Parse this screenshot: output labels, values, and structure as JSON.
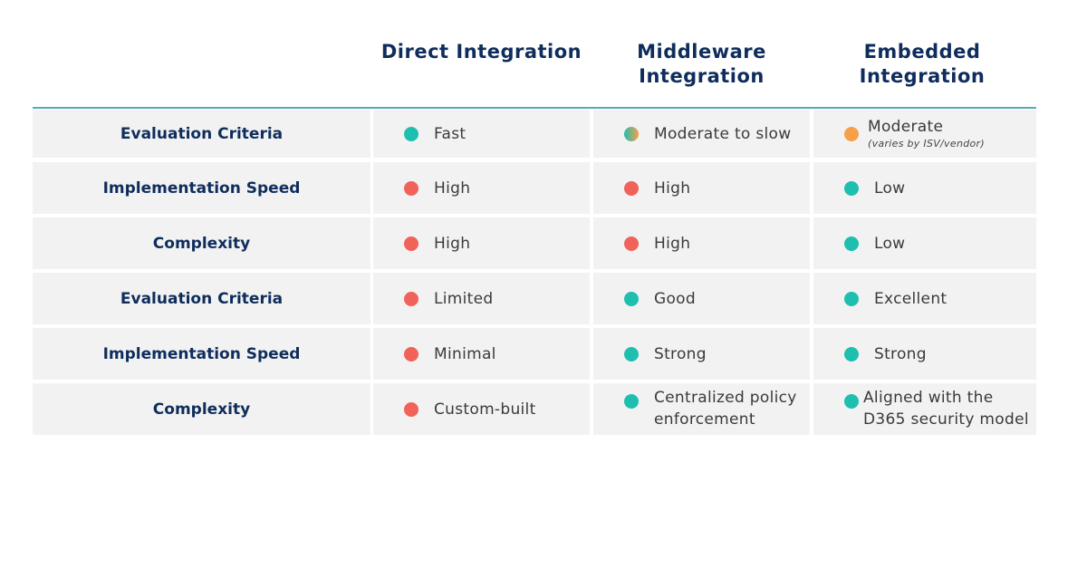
{
  "colors": {
    "good": "#1fbfb0",
    "bad": "#f0625a",
    "medium": "#f7a04a",
    "mixed": "linear-gradient(90deg,#1fbfb0,#f7a04a)",
    "header": "#0f2d5c"
  },
  "columns": [
    "Direct Integration",
    "Middleware Integration",
    "Embedded Integration"
  ],
  "rows": [
    {
      "label": "Evaluation Criteria",
      "cells": [
        {
          "status": "good",
          "text": "Fast"
        },
        {
          "status": "mixed",
          "text": "Moderate to slow"
        },
        {
          "status": "medium",
          "text": "Moderate",
          "note": "(varies by ISV/vendor)"
        }
      ]
    },
    {
      "label": "Implementation Speed",
      "cells": [
        {
          "status": "bad",
          "text": "High"
        },
        {
          "status": "bad",
          "text": "High"
        },
        {
          "status": "good",
          "text": "Low"
        }
      ]
    },
    {
      "label": "Complexity",
      "cells": [
        {
          "status": "bad",
          "text": "High"
        },
        {
          "status": "bad",
          "text": "High"
        },
        {
          "status": "good",
          "text": "Low"
        }
      ]
    },
    {
      "label": "Evaluation Criteria",
      "cells": [
        {
          "status": "bad",
          "text": "Limited"
        },
        {
          "status": "good",
          "text": "Good"
        },
        {
          "status": "good",
          "text": "Excellent"
        }
      ]
    },
    {
      "label": "Implementation Speed",
      "cells": [
        {
          "status": "bad",
          "text": "Minimal"
        },
        {
          "status": "good",
          "text": "Strong"
        },
        {
          "status": "good",
          "text": "Strong"
        }
      ]
    },
    {
      "label": "Complexity",
      "cells": [
        {
          "status": "bad",
          "text": "Custom-built"
        },
        {
          "status": "good",
          "text": "Centralized policy enforcement"
        },
        {
          "status": "good",
          "text": "Aligned with the D365 security model"
        }
      ]
    }
  ]
}
